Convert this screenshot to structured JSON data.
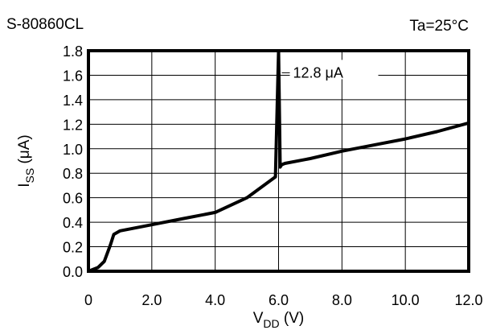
{
  "chart_data": {
    "type": "line",
    "title": "S-80860CL",
    "condition": "Ta=25°C",
    "xlabel": {
      "main": "V",
      "sub": "DD",
      "unit": " (V)"
    },
    "ylabel": {
      "main": "I",
      "sub": "SS",
      "unit": " (μA)"
    },
    "xlim": [
      0,
      12
    ],
    "ylim": [
      0,
      1.8
    ],
    "x_ticks": [
      {
        "v": 0,
        "label": "0"
      },
      {
        "v": 2,
        "label": "2.0"
      },
      {
        "v": 4,
        "label": "4.0"
      },
      {
        "v": 6,
        "label": "6.0"
      },
      {
        "v": 8,
        "label": "8.0"
      },
      {
        "v": 10,
        "label": "10.0"
      },
      {
        "v": 12,
        "label": "12.0"
      }
    ],
    "y_ticks": [
      {
        "v": 0,
        "label": "0.0"
      },
      {
        "v": 0.2,
        "label": "0.2"
      },
      {
        "v": 0.4,
        "label": "0.4"
      },
      {
        "v": 0.6,
        "label": "0.6"
      },
      {
        "v": 0.8,
        "label": "0.8"
      },
      {
        "v": 1.0,
        "label": "1.0"
      },
      {
        "v": 1.2,
        "label": "1.2"
      },
      {
        "v": 1.4,
        "label": "1.4"
      },
      {
        "v": 1.6,
        "label": "1.6"
      },
      {
        "v": 1.8,
        "label": "1.8"
      }
    ],
    "grid": true,
    "series": [
      {
        "x": [
          0,
          0.3,
          0.5,
          0.7,
          0.8,
          1.0,
          2.0,
          3.0,
          4.0,
          5.0,
          5.9,
          6.0,
          6.05,
          6.1,
          6.2,
          7.0,
          8.0,
          9.0,
          10.0,
          11.0,
          12.0
        ],
        "y": [
          0,
          0.03,
          0.08,
          0.22,
          0.3,
          0.33,
          0.38,
          0.43,
          0.48,
          0.6,
          0.77,
          1.8,
          0.85,
          0.87,
          0.88,
          0.92,
          0.98,
          1.03,
          1.08,
          1.14,
          1.21
        ]
      }
    ],
    "annotation": {
      "text": "12.8 μA",
      "x": 6.0,
      "y": 1.62
    }
  }
}
